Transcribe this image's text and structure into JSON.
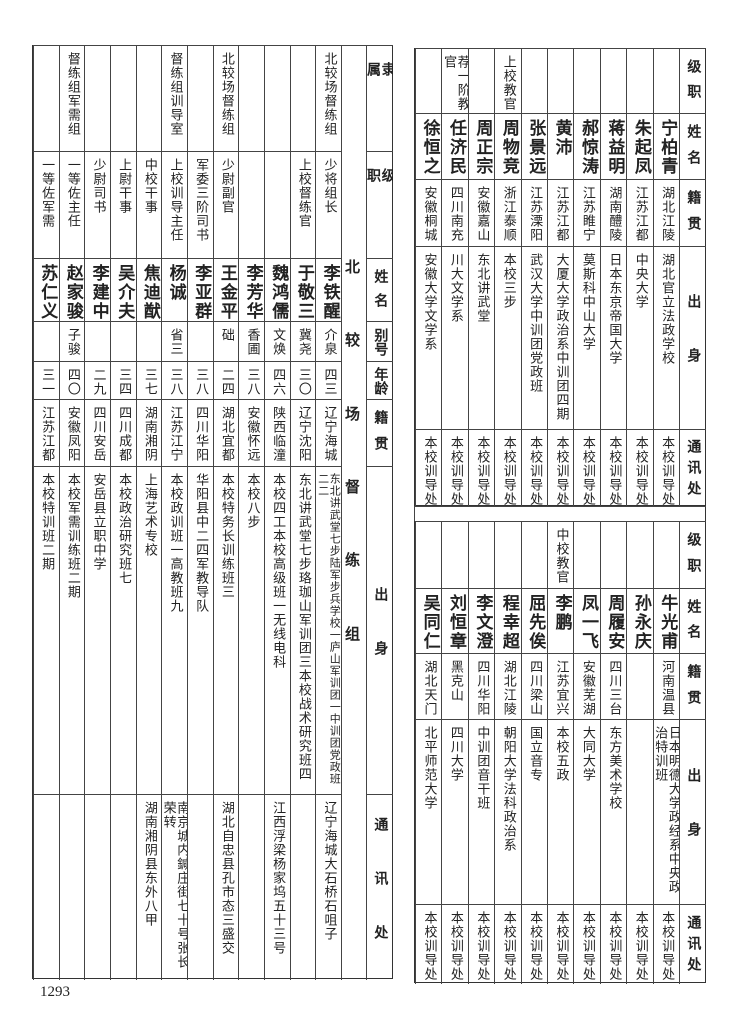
{
  "left_section": {
    "title": "北较场督练组",
    "headers": [
      "隶属",
      "级职",
      "姓名",
      "别号",
      "年龄",
      "籍贯",
      "出身",
      "通讯处"
    ],
    "rows": [
      {
        "affiliation": "北较场督练组",
        "rank": "少将组长",
        "name": "李铁醒",
        "alias": "介泉",
        "age": "四三",
        "native": "辽宁海城",
        "education": "东北讲武堂七步陆军步兵学校一庐山军训团一中训团党政班二二",
        "address": "辽宁海城大石桥石咀子"
      },
      {
        "affiliation": "",
        "rank": "上校督练官",
        "name": "于敬三",
        "alias": "冀尧",
        "age": "三〇",
        "native": "辽宁沈阳",
        "education": "东北讲武堂七步珞珈山军训团三本校战术研究班四",
        "address": ""
      },
      {
        "affiliation": "",
        "rank": "",
        "name": "魏鸿儒",
        "alias": "文焕",
        "age": "四六",
        "native": "陕西临潼",
        "education": "本校四工本校高级班一无线电科",
        "address": "江西浮梁杨家坞五十三号"
      },
      {
        "affiliation": "",
        "rank": "",
        "name": "李芳华",
        "alias": "香圃",
        "age": "三八",
        "native": "安徽怀远",
        "education": "本校八步",
        "address": ""
      },
      {
        "affiliation": "北较场督练组",
        "rank": "少尉副官",
        "name": "王金平",
        "alias": "础",
        "age": "二四",
        "native": "湖北宜都",
        "education": "本校特务长训练班三",
        "address": "湖北自忠县孔市态三盛交"
      },
      {
        "affiliation": "",
        "rank": "军委三阶司书",
        "name": "李亚群",
        "alias": "",
        "age": "三八",
        "native": "四川华阳",
        "education": "华阳县中二四军教导队",
        "address": ""
      },
      {
        "affiliation": "督练组训导室",
        "rank": "上校训导主任",
        "name": "杨诚",
        "alias": "省三",
        "age": "三八",
        "native": "江苏江宁",
        "education": "本校政训班一高教班九",
        "address": "南京城内鍼庄街七十号张长荣转"
      },
      {
        "affiliation": "",
        "rank": "中校干事",
        "name": "焦迪猷",
        "alias": "",
        "age": "三七",
        "native": "湖南湘阴",
        "education": "上海艺术专校",
        "address": "湖南湘阴县东外八甲"
      },
      {
        "affiliation": "",
        "rank": "上尉干事",
        "name": "吴介夫",
        "alias": "",
        "age": "三四",
        "native": "四川成都",
        "education": "本校政治研究班七",
        "address": ""
      },
      {
        "affiliation": "",
        "rank": "少尉司书",
        "name": "李建中",
        "alias": "",
        "age": "二九",
        "native": "四川安岳",
        "education": "安岳县立职中学",
        "address": ""
      },
      {
        "affiliation": "督练组军需组",
        "rank": "一等佐主任",
        "name": "赵家骏",
        "alias": "子骏",
        "age": "四〇",
        "native": "安徽凤阳",
        "education": "本校军需训练班二期",
        "address": ""
      },
      {
        "affiliation": "",
        "rank": "一等佐军需",
        "name": "苏仁义",
        "alias": "",
        "age": "三一",
        "native": "江苏江都",
        "education": "本校特训班二期",
        "address": ""
      }
    ]
  },
  "right_top": {
    "headers": [
      "级职",
      "姓名",
      "籍贯",
      "出身",
      "通讯处"
    ],
    "rows": [
      {
        "rank": "",
        "name": "宁柏青",
        "native": "湖北江陵",
        "education": "湖北官立法政学校",
        "address": "本校训导处"
      },
      {
        "rank": "",
        "name": "朱起凤",
        "native": "江苏江都",
        "education": "中央大学",
        "address": "本校训导处"
      },
      {
        "rank": "",
        "name": "蒋益明",
        "native": "湖南醴陵",
        "education": "日本东京帝国大学",
        "address": "本校训导处"
      },
      {
        "rank": "",
        "name": "郝惊涛",
        "native": "江苏睢宁",
        "education": "莫斯科中山大学",
        "address": "本校训导处"
      },
      {
        "rank": "",
        "name": "黄沛",
        "native": "江苏江都",
        "education": "大厦大学政治系中训团四期",
        "address": "本校训导处"
      },
      {
        "rank": "",
        "name": "张景远",
        "native": "江苏溧阳",
        "education": "武汉大学中训团党政班",
        "address": "本校训导处"
      },
      {
        "rank": "上校教官",
        "name": "周物竞",
        "native": "浙江泰顺",
        "education": "本校三步",
        "address": "本校训导处"
      },
      {
        "rank": "",
        "name": "周正宗",
        "native": "安徽嘉山",
        "education": "东北讲武堂",
        "address": "本校训导处"
      },
      {
        "rank": "荐一阶教官",
        "name": "任济民",
        "native": "四川南充",
        "education": "川大文学系",
        "address": "本校训导处"
      },
      {
        "rank": "",
        "name": "徐恒之",
        "native": "安徽桐城",
        "education": "安徽大学文学系",
        "address": "本校训导处"
      }
    ]
  },
  "right_bottom": {
    "headers": [
      "级职",
      "姓名",
      "籍贯",
      "出身",
      "通讯处"
    ],
    "rows": [
      {
        "rank": "",
        "name": "牛光甫",
        "native": "河南温县",
        "education": "日本明德大学政经系中央政治特训班",
        "address": "本校训导处"
      },
      {
        "rank": "",
        "name": "孙永庆",
        "native": "",
        "education": "",
        "address": "本校训导处"
      },
      {
        "rank": "",
        "name": "周履安",
        "native": "四川三台",
        "education": "东方美术学校",
        "address": "本校训导处"
      },
      {
        "rank": "",
        "name": "凤一飞",
        "native": "安徽芜湖",
        "education": "大同大学",
        "address": "本校训导处"
      },
      {
        "rank": "中校教官",
        "name": "李鹏",
        "native": "江苏宜兴",
        "education": "本校五政",
        "address": "本校训导处"
      },
      {
        "rank": "",
        "name": "屈先俟",
        "native": "四川梁山",
        "education": "国立音专",
        "address": "本校训导处"
      },
      {
        "rank": "",
        "name": "程幸超",
        "native": "湖北江陵",
        "education": "朝阳大学法科政治系",
        "address": "本校训导处"
      },
      {
        "rank": "",
        "name": "李文澄",
        "native": "四川华阳",
        "education": "中训团音干班",
        "address": "本校训导处"
      },
      {
        "rank": "",
        "name": "刘恒章",
        "native": "黑克山",
        "education": "四川大学",
        "address": "本校训导处"
      },
      {
        "rank": "",
        "name": "吴同仁",
        "native": "湖北天门",
        "education": "北平师范大学",
        "address": "本校训导处"
      }
    ]
  },
  "page_number": "1293"
}
